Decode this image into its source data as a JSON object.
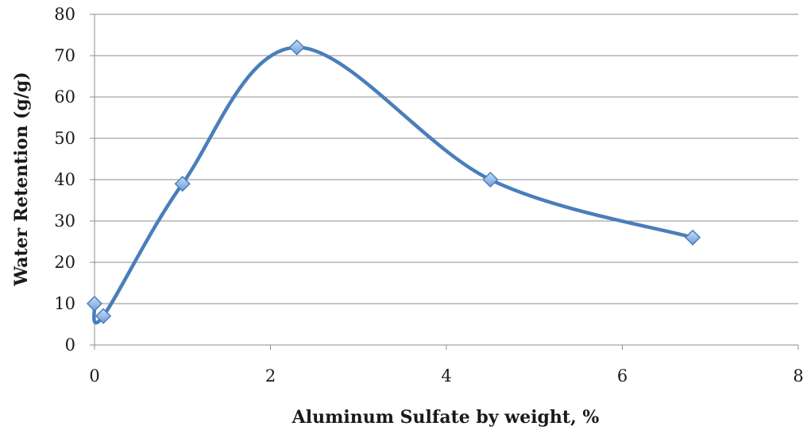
{
  "chart_data": {
    "type": "scatter",
    "title": "",
    "xlabel": "Aluminum Sulfate by weight, %",
    "ylabel": "Water Retention (g/g)",
    "xlim": [
      0,
      8
    ],
    "ylim": [
      0,
      80
    ],
    "x_ticks": [
      0,
      2,
      4,
      6,
      8
    ],
    "y_ticks": [
      0,
      10,
      20,
      30,
      40,
      50,
      60,
      70,
      80
    ],
    "grid": "horizontal",
    "legend": "none",
    "smooth_line": true,
    "series": [
      {
        "x": [
          0,
          0.1,
          1,
          2.3,
          4.5,
          6.8
        ],
        "values": [
          10,
          7,
          39,
          72,
          40,
          26
        ]
      }
    ],
    "colors": {
      "line": "#4a7ebb",
      "marker_fill": "#8cb4e8",
      "marker_stroke": "#4a7ebb",
      "grid": "#8c8c8c",
      "axis": "#8c8c8c"
    }
  }
}
